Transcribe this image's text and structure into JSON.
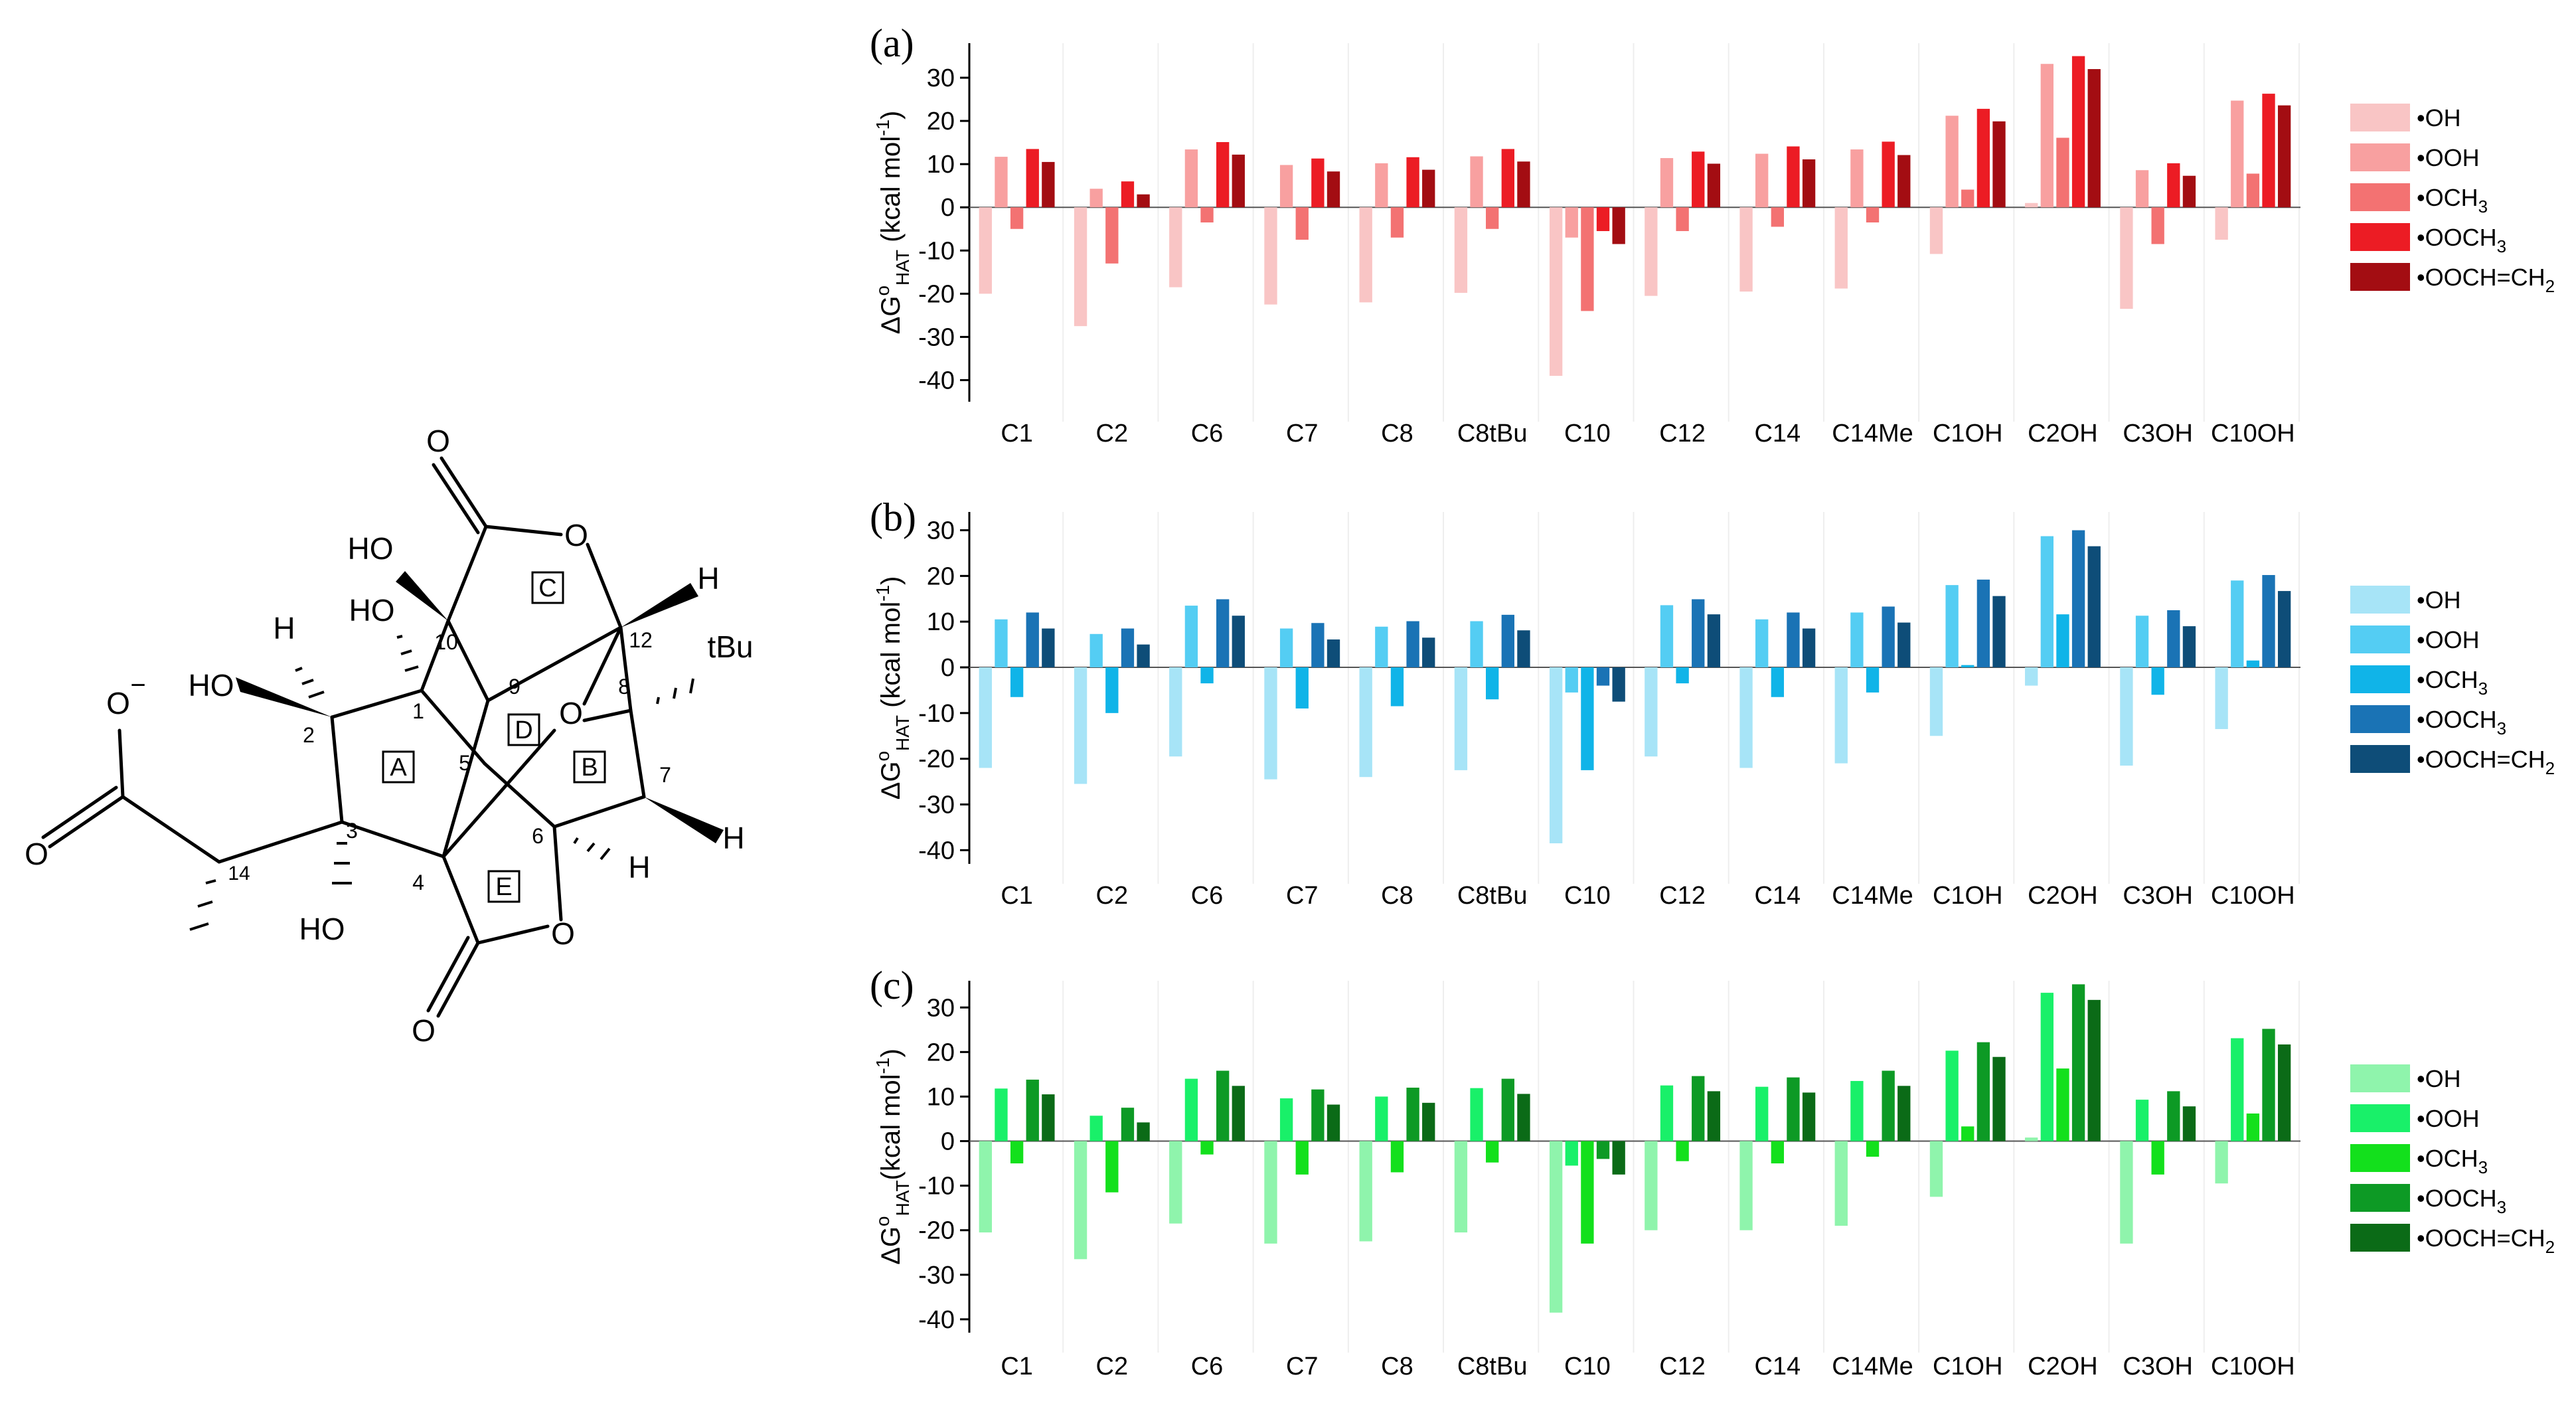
{
  "figure": {
    "molecule": {
      "labels": {
        "o_top": "O",
        "ho_10": "HO",
        "o_ring_c": "O",
        "h_12": "H",
        "ho_1": "HO",
        "h_2": "H",
        "ho_2": "HO",
        "carboxylate_o": "O",
        "carboxylate_charge": "−",
        "carboxylate_o2": "O",
        "tbu": "tBu",
        "o_bridge": "O",
        "h_6": "H",
        "h_7": "H",
        "ho_3": "HO",
        "o_ring_e": "O",
        "o_bottom": "O"
      },
      "atom_numbers": [
        "1",
        "2",
        "3",
        "4",
        "5",
        "6",
        "7",
        "8",
        "9",
        "10",
        "12",
        "14"
      ],
      "ring_labels": [
        "A",
        "B",
        "C",
        "D",
        "E"
      ]
    }
  },
  "chart_data": [
    {
      "type": "bar",
      "panel_label": "(a)",
      "ylabel": "ΔG°HAT (kcal mol-1)",
      "ylabel_parts": {
        "delta_g": "ΔG",
        "sup": "o",
        "sub": "HAT",
        "unit": " (kcal mol",
        "unit_sup": "-1",
        "close": ")"
      },
      "ylim": [
        -45,
        38
      ],
      "yticks": [
        -40,
        -30,
        -20,
        -10,
        0,
        10,
        20,
        30
      ],
      "categories": [
        "C1",
        "C2",
        "C6",
        "C7",
        "C8",
        "C8tBu",
        "C10",
        "C12",
        "C14",
        "C14Me",
        "C1OH",
        "C2OH",
        "C3OH",
        "C10OH"
      ],
      "legend_position": "right",
      "series": [
        {
          "name": "•OH",
          "label_main": "•OH",
          "label_sub": "",
          "label_tail": "",
          "color": "#f9c5c5",
          "values": [
            -20,
            -27.5,
            -18.5,
            -22.5,
            -22,
            -19.8,
            -39,
            -20.5,
            -19.5,
            -18.8,
            -10.8,
            1,
            -23.5,
            -7.5
          ]
        },
        {
          "name": "•OOH",
          "label_main": "•OOH",
          "label_sub": "",
          "label_tail": "",
          "color": "#f8a0a0",
          "values": [
            11.7,
            4.3,
            13.4,
            9.8,
            10.2,
            11.8,
            -7,
            11.4,
            12.4,
            13.4,
            21.2,
            33.2,
            8.6,
            24.7
          ]
        },
        {
          "name": "•OCH3",
          "label_main": "•OCH",
          "label_sub": "3",
          "label_tail": "",
          "color": "#f37272",
          "values": [
            -5,
            -13,
            -3.5,
            -7.5,
            -7,
            -5,
            -24,
            -5.5,
            -4.5,
            -3.5,
            4.1,
            16.1,
            -8.5,
            7.8
          ]
        },
        {
          "name": "•OOCH3",
          "label_main": "•OOCH",
          "label_sub": "3",
          "label_tail": "",
          "color": "#ec1c24",
          "values": [
            13.5,
            6,
            15.1,
            11.3,
            11.6,
            13.5,
            -5.5,
            12.9,
            14.1,
            15.2,
            22.8,
            35,
            10.2,
            26.3
          ]
        },
        {
          "name": "•OOCH=CH2",
          "label_main": "•OOCH=CH",
          "label_sub": "2",
          "label_tail": "",
          "color": "#a30d12",
          "values": [
            10.5,
            3,
            12.2,
            8.3,
            8.7,
            10.6,
            -8.5,
            10.1,
            11.1,
            12.1,
            19.9,
            32,
            7.3,
            23.6
          ]
        }
      ]
    },
    {
      "type": "bar",
      "panel_label": "(b)",
      "ylabel": "ΔG°HAT (kcal mol-1)",
      "ylabel_parts": {
        "delta_g": "ΔG",
        "sup": "o",
        "sub": "HAT",
        "unit": " (kcal mol",
        "unit_sup": "-1",
        "close": ")"
      },
      "ylim": [
        -43,
        34
      ],
      "yticks": [
        -40,
        -30,
        -20,
        -10,
        0,
        10,
        20,
        30
      ],
      "categories": [
        "C1",
        "C2",
        "C6",
        "C7",
        "C8",
        "C8tBu",
        "C10",
        "C12",
        "C14",
        "C14Me",
        "C1OH",
        "C2OH",
        "C3OH",
        "C10OH"
      ],
      "legend_position": "right",
      "series": [
        {
          "name": "•OH",
          "label_main": "•OH",
          "label_sub": "",
          "label_tail": "",
          "color": "#a7e4f7",
          "values": [
            -22,
            -25.5,
            -19.5,
            -24.5,
            -24,
            -22.5,
            -38.5,
            -19.5,
            -22,
            -21,
            -15,
            -4,
            -21.5,
            -13.5
          ]
        },
        {
          "name": "•OOH",
          "label_main": "•OOH",
          "label_sub": "",
          "label_tail": "",
          "color": "#54cdf3",
          "values": [
            10.5,
            7.3,
            13.5,
            8.5,
            8.9,
            10.1,
            -5.5,
            13.6,
            10.5,
            12,
            18,
            28.7,
            11.3,
            19
          ]
        },
        {
          "name": "•OCH3",
          "label_main": "•OCH",
          "label_sub": "3",
          "label_tail": "",
          "color": "#10b4e8",
          "values": [
            -6.5,
            -10,
            -3.5,
            -9,
            -8.5,
            -7,
            -22.5,
            -3.5,
            -6.5,
            -5.5,
            0.5,
            11.6,
            -6,
            1.5
          ]
        },
        {
          "name": "•OOCH3",
          "label_main": "•OOCH",
          "label_sub": "3",
          "label_tail": "",
          "color": "#1a73b5",
          "values": [
            12,
            8.5,
            14.9,
            9.7,
            10.1,
            11.5,
            -4,
            14.9,
            12,
            13.3,
            19.2,
            30,
            12.5,
            20.2
          ]
        },
        {
          "name": "•OOCH=CH2",
          "label_main": "•OOCH=CH",
          "label_sub": "2",
          "label_tail": "",
          "color": "#0e4d78",
          "values": [
            8.5,
            5,
            11.3,
            6.1,
            6.5,
            8.1,
            -7.5,
            11.6,
            8.5,
            9.8,
            15.6,
            26.5,
            9,
            16.7
          ]
        }
      ]
    },
    {
      "type": "bar",
      "panel_label": "(c)",
      "ylabel": "ΔG°HAT(kcal mol-1)",
      "ylabel_parts": {
        "delta_g": "ΔG",
        "sup": "o",
        "sub": "HAT",
        "unit": "(kcal mol",
        "unit_sup": "-1",
        "close": ")"
      },
      "ylim": [
        -43,
        36
      ],
      "yticks": [
        -40,
        -30,
        -20,
        -10,
        0,
        10,
        20,
        30
      ],
      "categories": [
        "C1",
        "C2",
        "C6",
        "C7",
        "C8",
        "C8tBu",
        "C10",
        "C12",
        "C14",
        "C14Me",
        "C1OH",
        "C2OH",
        "C3OH",
        "C10OH"
      ],
      "legend_position": "right",
      "series": [
        {
          "name": "•OH",
          "label_main": "•OH",
          "label_sub": "",
          "label_tail": "",
          "color": "#8ff4ac",
          "values": [
            -20.5,
            -26.5,
            -18.5,
            -23,
            -22.5,
            -20.5,
            -38.5,
            -20,
            -20,
            -19,
            -12.5,
            0.8,
            -23,
            -9.5
          ]
        },
        {
          "name": "•OOH",
          "label_main": "•OOH",
          "label_sub": "",
          "label_tail": "",
          "color": "#19f069",
          "values": [
            11.8,
            5.7,
            14,
            9.6,
            10,
            11.9,
            -5.5,
            12.5,
            12.2,
            13.5,
            20.3,
            33.3,
            9.3,
            23.1
          ]
        },
        {
          "name": "•OCH3",
          "label_main": "•OCH",
          "label_sub": "3",
          "label_tail": "",
          "color": "#13e01c",
          "values": [
            -5,
            -11.5,
            -3,
            -7.5,
            -7,
            -4.8,
            -23,
            -4.5,
            -5,
            -3.5,
            3.3,
            16.3,
            -7.5,
            6.2
          ]
        },
        {
          "name": "•OOCH3",
          "label_main": "•OOCH",
          "label_sub": "3",
          "label_tail": "",
          "color": "#0d9a25",
          "values": [
            13.8,
            7.5,
            15.8,
            11.6,
            12,
            14,
            -4,
            14.6,
            14.3,
            15.8,
            22.2,
            35.2,
            11.2,
            25.2
          ]
        },
        {
          "name": "•OOCH=CH2",
          "label_main": "•OOCH=CH",
          "label_sub": "2",
          "label_tail": "",
          "color": "#0b6b17",
          "values": [
            10.5,
            4.2,
            12.4,
            8.2,
            8.6,
            10.6,
            -7.5,
            11.2,
            10.9,
            12.4,
            18.9,
            31.7,
            7.8,
            21.7
          ]
        }
      ]
    }
  ]
}
